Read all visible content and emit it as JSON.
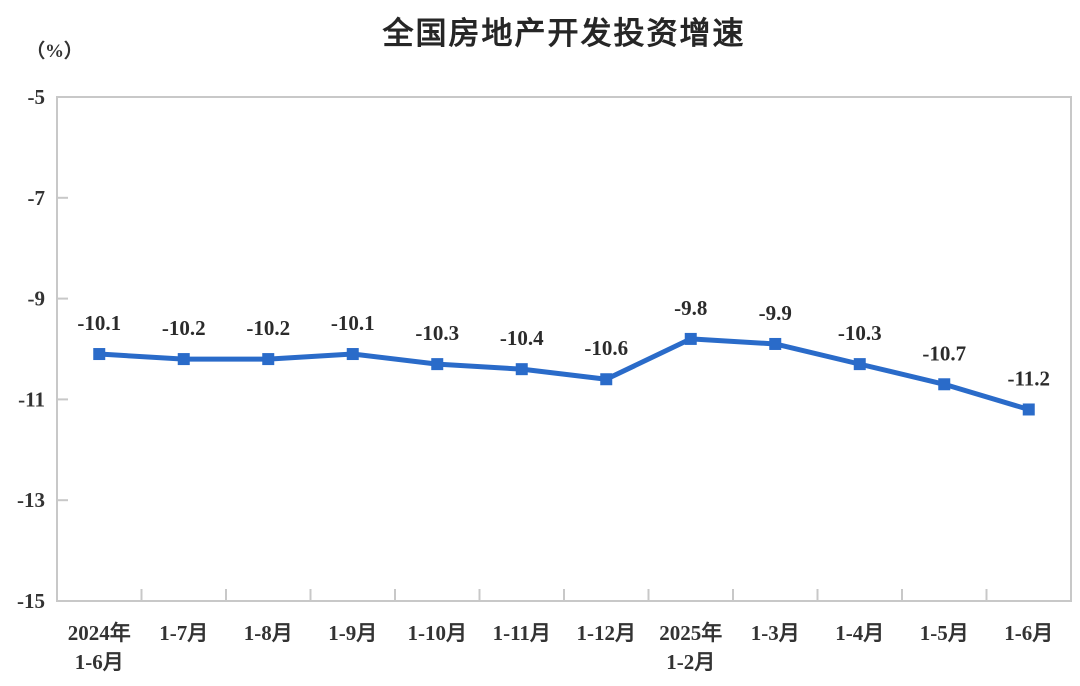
{
  "chart_data": {
    "type": "line",
    "title": "全国房地产开发投资增速",
    "unit_label": "（%）",
    "categories": [
      [
        "2024年",
        "1-6月"
      ],
      [
        "1-7月"
      ],
      [
        "1-8月"
      ],
      [
        "1-9月"
      ],
      [
        "1-10月"
      ],
      [
        "1-11月"
      ],
      [
        "1-12月"
      ],
      [
        "2025年",
        "1-2月"
      ],
      [
        "1-3月"
      ],
      [
        "1-4月"
      ],
      [
        "1-5月"
      ],
      [
        "1-6月"
      ]
    ],
    "values": [
      -10.1,
      -10.2,
      -10.2,
      -10.1,
      -10.3,
      -10.4,
      -10.6,
      -9.8,
      -9.9,
      -10.3,
      -10.7,
      -11.2
    ],
    "data_labels": [
      "-10.1",
      "-10.2",
      "-10.2",
      "-10.1",
      "-10.3",
      "-10.4",
      "-10.6",
      "-9.8",
      "-9.9",
      "-10.3",
      "-10.7",
      "-11.2"
    ],
    "xlabel": "",
    "ylabel": "",
    "ylim": [
      -15,
      -5
    ],
    "y_ticks": [
      -5,
      -7,
      -9,
      -11,
      -13,
      -15
    ],
    "grid": false,
    "legend_position": "none",
    "line_color": "#2a6bc9",
    "marker": "square",
    "marker_color": "#2a6bc9",
    "text_color": "#333333",
    "axis_color": "#c8c8c8",
    "background_color": "#ffffff"
  }
}
